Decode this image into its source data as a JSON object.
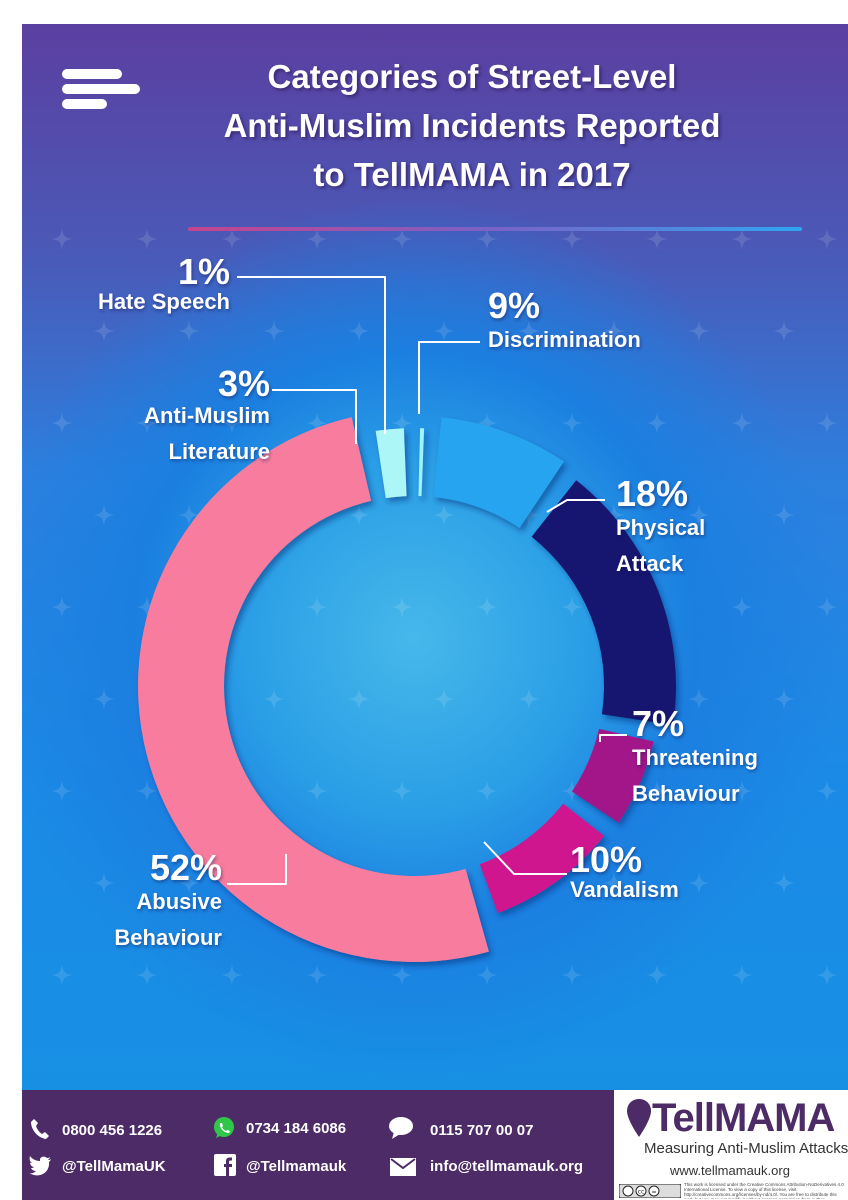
{
  "title_lines": [
    "Categories of Street-Level",
    "Anti-Muslim Incidents Reported",
    "to TellMAMA  in 2017"
  ],
  "chart_data": {
    "type": "pie",
    "style": "donut",
    "title": "Categories of Street-Level Anti-Muslim Incidents Reported to TellMAMA in 2017",
    "unit": "%",
    "slices": [
      {
        "label": "Hate Speech",
        "value": 1,
        "display": "1%",
        "color": "#9ef4f8"
      },
      {
        "label": "Discrimination",
        "value": 9,
        "display": "9%",
        "color": "#25a4ef"
      },
      {
        "label": "Physical Attack",
        "value": 18,
        "display": "18%",
        "color": "#161470"
      },
      {
        "label": "Threatening Behaviour",
        "value": 7,
        "display": "7%",
        "color": "#a2148a"
      },
      {
        "label": "Vandalism",
        "value": 10,
        "display": "10%",
        "color": "#d0188f"
      },
      {
        "label": "Abusive Behaviour",
        "value": 52,
        "display": "52%",
        "color": "#f77c9e"
      },
      {
        "label": "Anti-Muslim Literature",
        "value": 3,
        "display": "3%",
        "color": "#adf6f8"
      }
    ]
  },
  "labels": {
    "hate_speech": {
      "pct": "1%",
      "lines": [
        "Hate Speech"
      ]
    },
    "anti_muslim_literature": {
      "pct": "3%",
      "lines": [
        "Anti-Muslim",
        "Literature"
      ]
    },
    "discrimination": {
      "pct": "9%",
      "lines": [
        "Discrimination"
      ]
    },
    "physical_attack": {
      "pct": "18%",
      "lines": [
        "Physical",
        "Attack"
      ]
    },
    "threatening_behaviour": {
      "pct": "7%",
      "lines": [
        "Threatening",
        "Behaviour"
      ]
    },
    "vandalism": {
      "pct": "10%",
      "lines": [
        "Vandalism"
      ]
    },
    "abusive_behaviour": {
      "pct": "52%",
      "lines": [
        "Abusive",
        "Behaviour"
      ]
    }
  },
  "footer": {
    "phone": "0800 456 1226",
    "whatsapp": "0734 184 6086",
    "sms": "0115 707 00 07",
    "twitter": "@TellMamaUK",
    "facebook": "@Tellmamauk",
    "email": "info@tellmamauk.org"
  },
  "brand": {
    "name": "TellMAMA",
    "tagline": "Measuring Anti-Muslim Attacks",
    "url": "www.tellmamauk.org",
    "license": "This work is licensed under the Creative Commons Attribution-NoDerivatives 4.0 International License. To view a copy of this license, visit http://creativecommons.org/licenses/by-nd/4.0/. You are free to distribute this work but you may not modify it without express permission from author.",
    "cc_badge": "(cc)(=)"
  },
  "colors": {
    "footer_bg": "#4d2b66",
    "accent_green": "#2fc64a"
  }
}
